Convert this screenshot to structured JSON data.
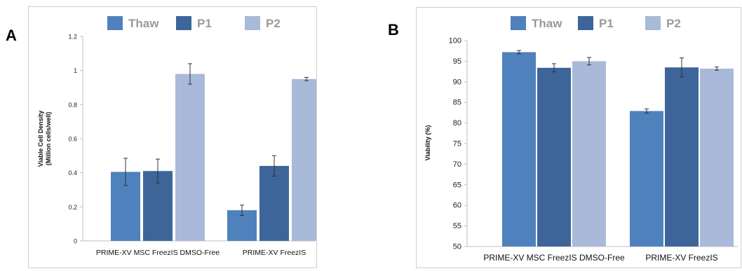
{
  "panels": [
    {
      "label": "A"
    },
    {
      "label": "B"
    }
  ],
  "chart_data": [
    {
      "type": "bar",
      "categories": [
        "PRIME-XV MSC FreezIS DMSO-Free",
        "PRIME-XV FreezIS"
      ],
      "series": [
        {
          "name": "Thaw",
          "color": "#4f81bd",
          "values": [
            0.405,
            0.18
          ],
          "errors": [
            0.08,
            0.03
          ]
        },
        {
          "name": "P1",
          "color": "#3e6599",
          "values": [
            0.41,
            0.44
          ],
          "errors": [
            0.07,
            0.06
          ]
        },
        {
          "name": "P2",
          "color": "#a9b9d9",
          "values": [
            0.98,
            0.95
          ],
          "errors": [
            0.06,
            0.01
          ]
        }
      ],
      "ylabel": "Viable Cell Density",
      "ylabel_unit": "(Million cells/well)",
      "ylim": [
        0,
        1.2
      ],
      "yticks": [
        "0",
        "0.2",
        "0.4",
        "0.6",
        "0.8",
        "1",
        "1.2"
      ],
      "grid": false,
      "legend": "top"
    },
    {
      "type": "bar",
      "categories": [
        "PRIME-XV MSC FreezIS DMSO-Free",
        "PRIME-XV FreezIS"
      ],
      "series": [
        {
          "name": "Thaw",
          "color": "#4f81bd",
          "values": [
            97.2,
            82.9
          ],
          "errors": [
            0.4,
            0.5
          ]
        },
        {
          "name": "P1",
          "color": "#3e6599",
          "values": [
            93.4,
            93.5
          ],
          "errors": [
            1.0,
            2.3
          ]
        },
        {
          "name": "P2",
          "color": "#a9b9d9",
          "values": [
            95.0,
            93.2
          ],
          "errors": [
            0.9,
            0.4
          ]
        }
      ],
      "ylabel": "Viability (%)",
      "ylim": [
        50,
        100
      ],
      "yticks": [
        "50",
        "55",
        "60",
        "65",
        "70",
        "75",
        "80",
        "85",
        "90",
        "95",
        "100"
      ],
      "grid": false,
      "legend": "top"
    }
  ]
}
